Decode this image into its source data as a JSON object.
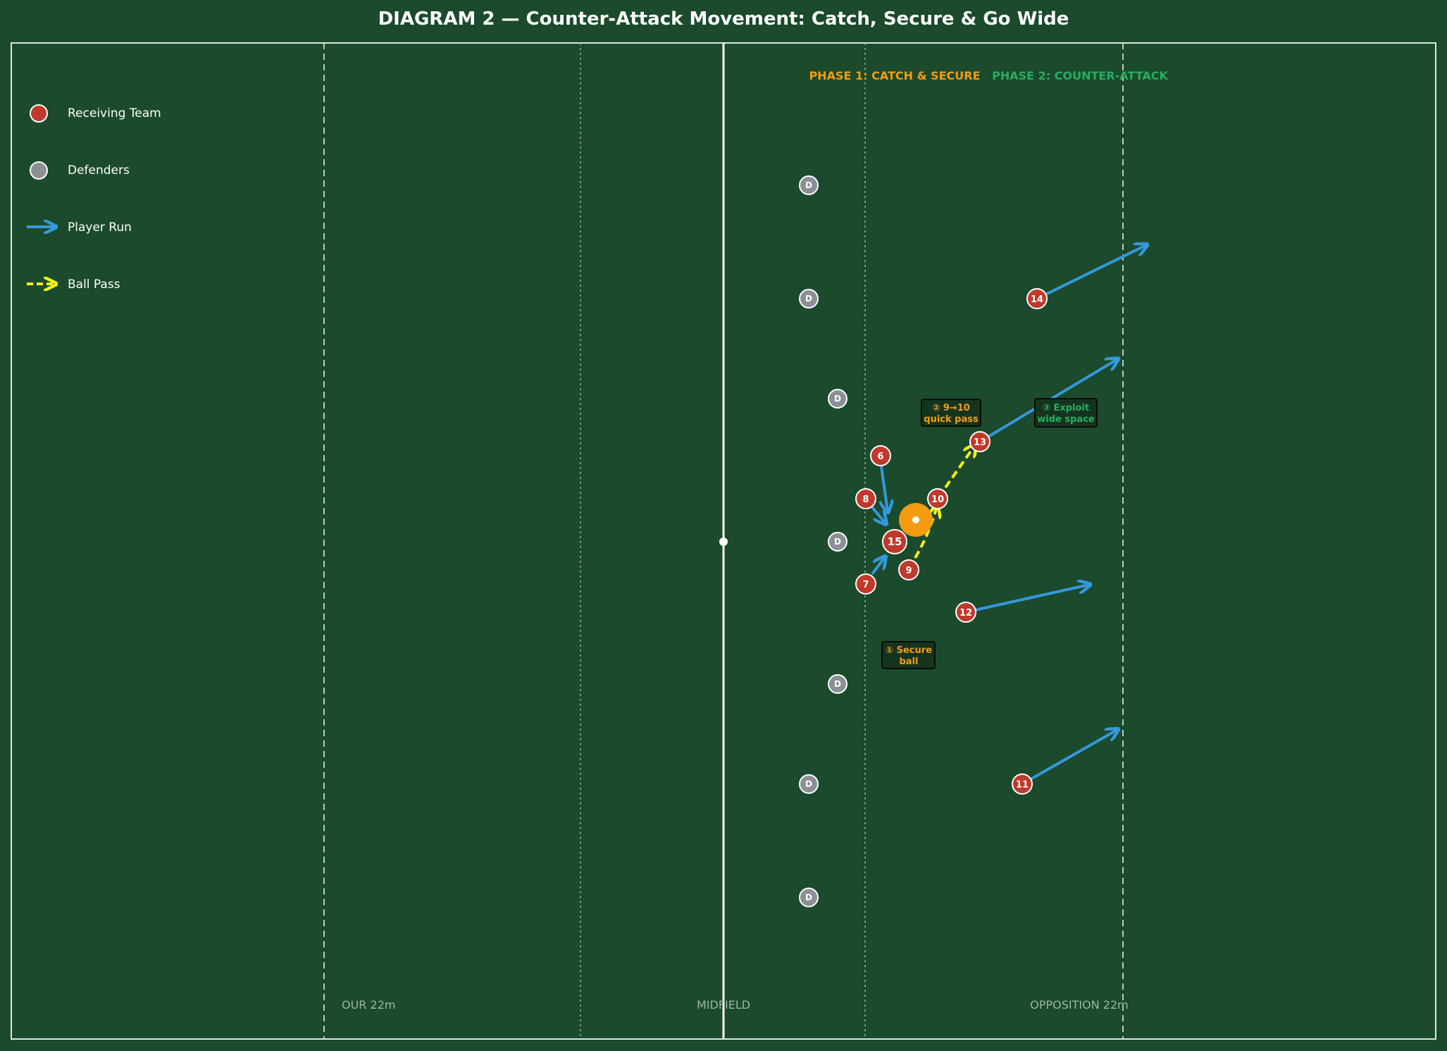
{
  "title": "DIAGRAM 2 — Counter-Attack Movement: Catch, Secure & Go Wide",
  "colors": {
    "background": "#1b4a2d",
    "line": "#e8ece9",
    "receiving": "#c0392b",
    "defender": "#8a9096",
    "run": "#3498db",
    "pass": "#f1f11a",
    "ball": "#f39c12",
    "phase1": "#f39c12",
    "phase2": "#27ae60",
    "zone_label": "#9fb5a6"
  },
  "legend": {
    "receiving": "Receiving Team",
    "defenders": "Defenders",
    "run": "Player Run",
    "pass": "Ball Pass"
  },
  "phases": {
    "phase1": "PHASE 1: CATCH & SECURE",
    "phase2": "PHASE 2: COUNTER-ATTACK"
  },
  "zones": {
    "our22": "OUR 22m",
    "midfield": "MIDFIELD",
    "opp22": "OPPOSITION 22m"
  },
  "callouts": {
    "c1": [
      "① Secure",
      "ball"
    ],
    "c2": [
      "② 9→10",
      "quick pass"
    ],
    "c3": [
      "③ Exploit",
      "wide space"
    ]
  },
  "players": {
    "receiving": [
      "6",
      "8",
      "15",
      "10",
      "7",
      "9",
      "13",
      "14",
      "12",
      "11"
    ],
    "defender_label": "D"
  }
}
